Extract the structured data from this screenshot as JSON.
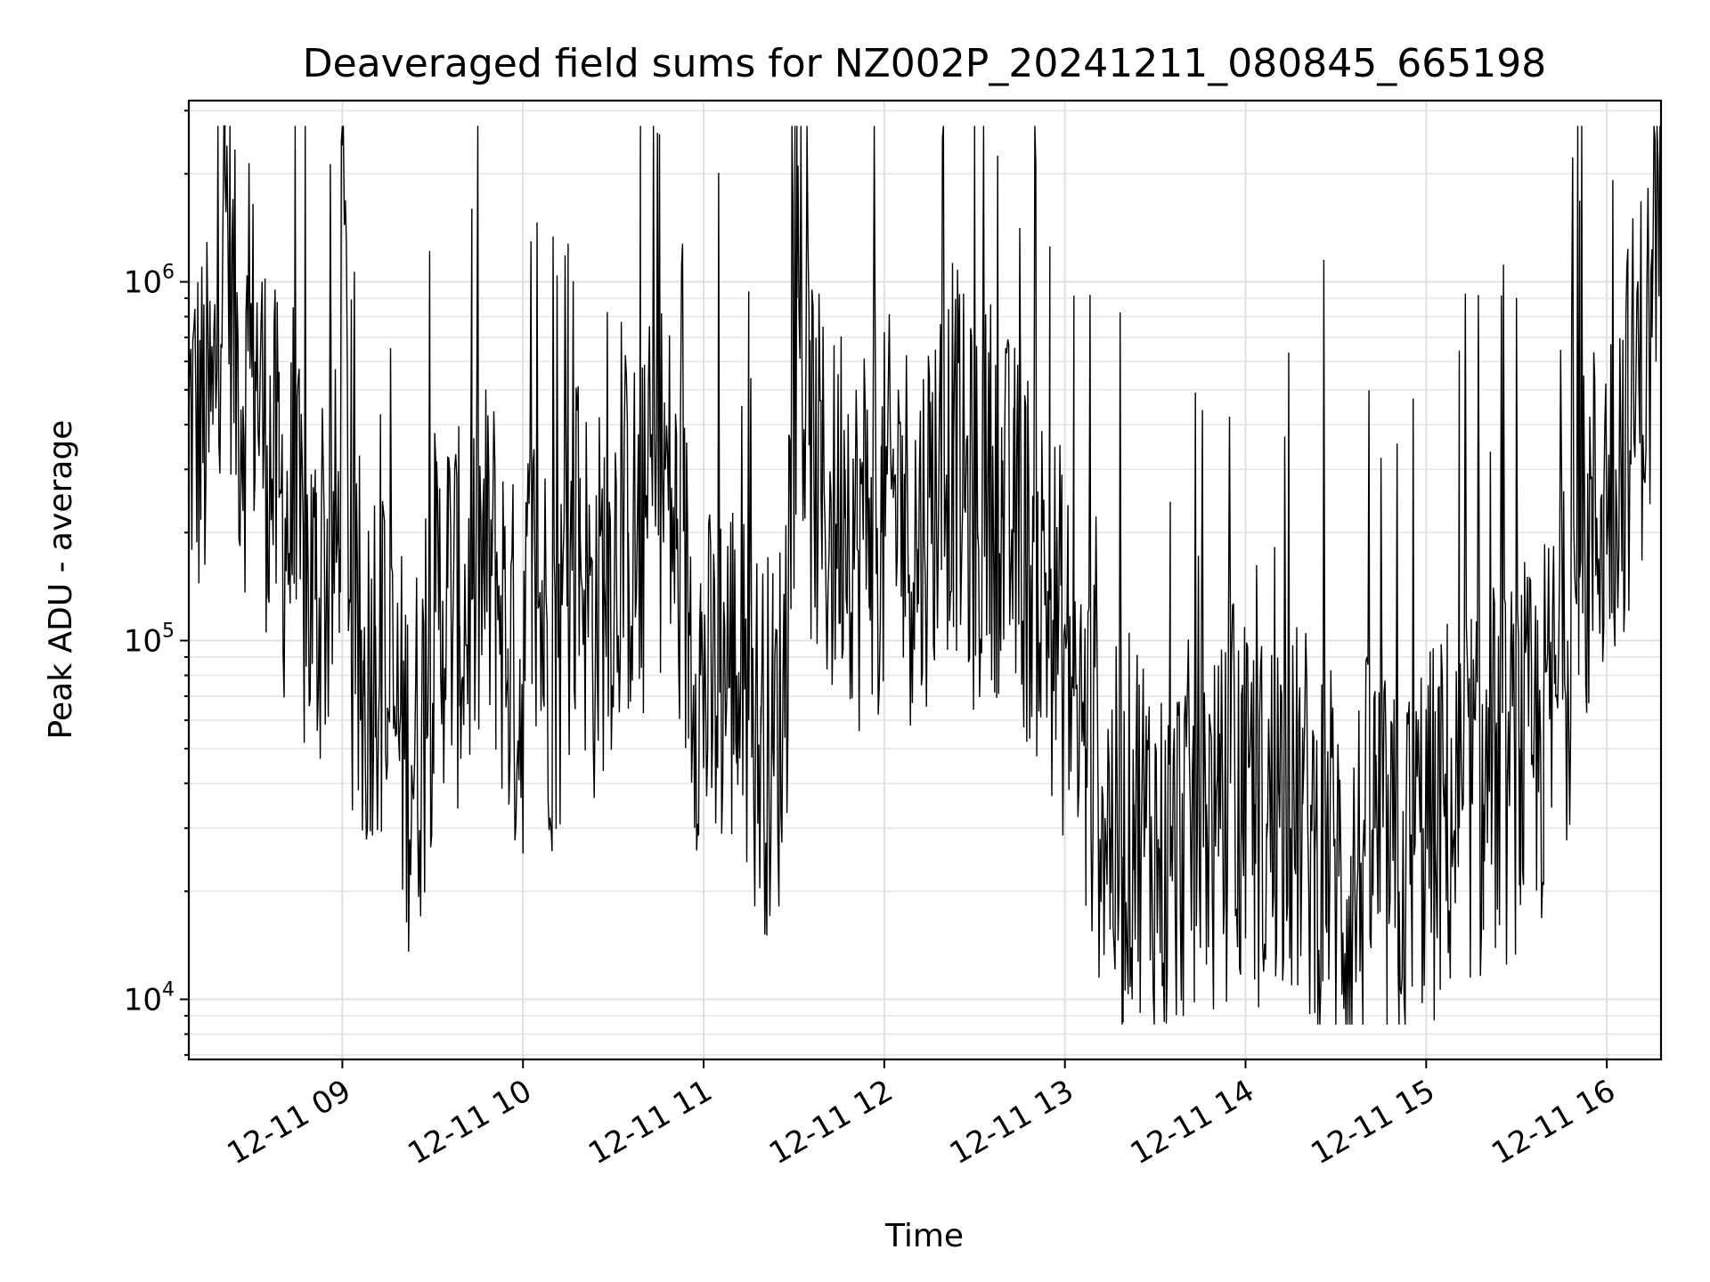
{
  "chart_data": {
    "type": "line",
    "title": "Deaveraged field sums for NZ002P_20241211_080845_665198",
    "xlabel": "Time",
    "ylabel": "Peak ADU - average",
    "yscale": "log",
    "ylim": [
      6800,
      3200000
    ],
    "xlim": [
      "2024-12-11 08:09",
      "2024-12-11 16:18"
    ],
    "grid": true,
    "x_ticks": [
      "12-11 09",
      "12-11 10",
      "12-11 11",
      "12-11 12",
      "12-11 13",
      "12-11 14",
      "12-11 15",
      "12-11 16"
    ],
    "y_ticks": [
      {
        "base": "10",
        "exp": "4",
        "value": 10000
      },
      {
        "base": "10",
        "exp": "5",
        "value": 100000
      },
      {
        "base": "10",
        "exp": "6",
        "value": 1000000
      }
    ],
    "series": [
      {
        "color": "#000000",
        "points": [
          [
            "08:09",
            420000
          ],
          [
            "08:13",
            380000
          ],
          [
            "08:17",
            400000
          ],
          [
            "08:21",
            2000000
          ],
          [
            "08:24",
            700000
          ],
          [
            "08:27",
            450000
          ],
          [
            "08:31",
            600000
          ],
          [
            "08:35",
            350000
          ],
          [
            "08:39",
            250000
          ],
          [
            "08:43",
            200000
          ],
          [
            "08:47",
            150000
          ],
          [
            "08:51",
            130000
          ],
          [
            "08:55",
            160000
          ],
          [
            "08:59",
            180000
          ],
          [
            "09:00",
            2400000
          ],
          [
            "09:03",
            90000
          ],
          [
            "09:07",
            70000
          ],
          [
            "09:11",
            110000
          ],
          [
            "09:15",
            65000
          ],
          [
            "09:19",
            55000
          ],
          [
            "09:23",
            45000
          ],
          [
            "09:27",
            60000
          ],
          [
            "09:31",
            120000
          ],
          [
            "09:35",
            140000
          ],
          [
            "09:39",
            110000
          ],
          [
            "09:43",
            130000
          ],
          [
            "09:47",
            160000
          ],
          [
            "09:51",
            150000
          ],
          [
            "09:55",
            95000
          ],
          [
            "09:59",
            70000
          ],
          [
            "10:03",
            150000
          ],
          [
            "10:07",
            110000
          ],
          [
            "10:11",
            80000
          ],
          [
            "10:15",
            140000
          ],
          [
            "10:19",
            200000
          ],
          [
            "10:23",
            110000
          ],
          [
            "10:27",
            150000
          ],
          [
            "10:31",
            180000
          ],
          [
            "10:35",
            200000
          ],
          [
            "10:39",
            170000
          ],
          [
            "10:43",
            250000
          ],
          [
            "10:47",
            300000
          ],
          [
            "10:51",
            180000
          ],
          [
            "10:55",
            120000
          ],
          [
            "10:59",
            80000
          ],
          [
            "11:03",
            65000
          ],
          [
            "11:07",
            90000
          ],
          [
            "11:11",
            80000
          ],
          [
            "11:15",
            60000
          ],
          [
            "11:19",
            55000
          ],
          [
            "11:23",
            50000
          ],
          [
            "11:27",
            70000
          ],
          [
            "11:31",
            900000
          ],
          [
            "11:35",
            350000
          ],
          [
            "11:39",
            250000
          ],
          [
            "11:43",
            200000
          ],
          [
            "11:47",
            300000
          ],
          [
            "11:51",
            180000
          ],
          [
            "11:55",
            250000
          ],
          [
            "11:59",
            200000
          ],
          [
            "12:03",
            250000
          ],
          [
            "12:07",
            220000
          ],
          [
            "12:11",
            180000
          ],
          [
            "12:15",
            250000
          ],
          [
            "12:19",
            300000
          ],
          [
            "12:23",
            350000
          ],
          [
            "12:27",
            250000
          ],
          [
            "12:31",
            200000
          ],
          [
            "12:35",
            280000
          ],
          [
            "12:39",
            220000
          ],
          [
            "12:43",
            200000
          ],
          [
            "12:47",
            180000
          ],
          [
            "12:51",
            150000
          ],
          [
            "12:55",
            130000
          ],
          [
            "12:59",
            100000
          ],
          [
            "13:03",
            70000
          ],
          [
            "13:07",
            50000
          ],
          [
            "13:11",
            40000
          ],
          [
            "13:15",
            30000
          ],
          [
            "13:19",
            25000
          ],
          [
            "13:23",
            35000
          ],
          [
            "13:27",
            30000
          ],
          [
            "13:31",
            25000
          ],
          [
            "13:35",
            22000
          ],
          [
            "13:39",
            30000
          ],
          [
            "13:43",
            28000
          ],
          [
            "13:47",
            35000
          ],
          [
            "13:51",
            25000
          ],
          [
            "13:55",
            40000
          ],
          [
            "13:59",
            30000
          ],
          [
            "14:03",
            35000
          ],
          [
            "14:07",
            28000
          ],
          [
            "14:11",
            40000
          ],
          [
            "14:15",
            30000
          ],
          [
            "14:19",
            35000
          ],
          [
            "14:23",
            25000
          ],
          [
            "14:27",
            30000
          ],
          [
            "14:31",
            22000
          ],
          [
            "14:35",
            18000
          ],
          [
            "14:39",
            25000
          ],
          [
            "14:43",
            30000
          ],
          [
            "14:47",
            22000
          ],
          [
            "14:51",
            20000
          ],
          [
            "14:55",
            25000
          ],
          [
            "14:59",
            30000
          ],
          [
            "15:03",
            28000
          ],
          [
            "15:07",
            35000
          ],
          [
            "15:11",
            30000
          ],
          [
            "15:15",
            40000
          ],
          [
            "15:19",
            35000
          ],
          [
            "15:23",
            45000
          ],
          [
            "15:27",
            40000
          ],
          [
            "15:31",
            50000
          ],
          [
            "15:35",
            45000
          ],
          [
            "15:39",
            55000
          ],
          [
            "15:43",
            70000
          ],
          [
            "15:47",
            100000
          ],
          [
            "15:51",
            150000
          ],
          [
            "15:55",
            200000
          ],
          [
            "15:59",
            250000
          ],
          [
            "16:03",
            300000
          ],
          [
            "16:07",
            400000
          ],
          [
            "16:11",
            550000
          ],
          [
            "16:15",
            700000
          ],
          [
            "16:18",
            2200000
          ]
        ]
      }
    ]
  }
}
